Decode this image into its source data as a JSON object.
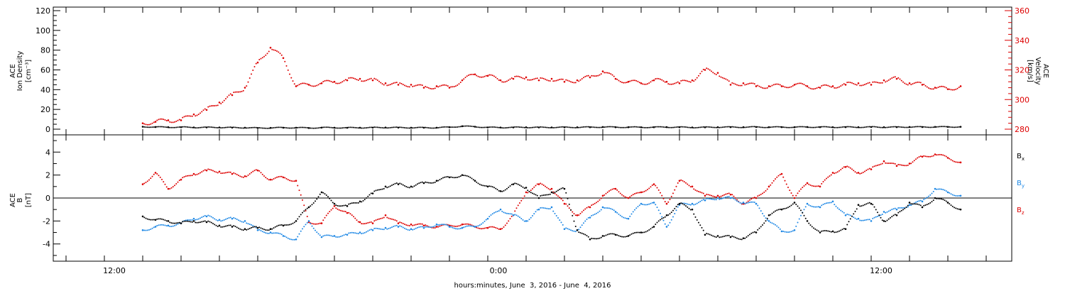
{
  "chart_data": [
    {
      "type": "scatter",
      "panel": "top",
      "ylabel_left": [
        "ACE",
        "Ion Density",
        "[cm⁻³]"
      ],
      "ylabel_right": [
        "ACE",
        "Velocity",
        "[km/s]"
      ],
      "ylim_left": [
        0,
        120
      ],
      "yticks_left": [
        "0",
        "20",
        "40",
        "60",
        "80",
        "100",
        "120"
      ],
      "ylim_right": [
        278,
        362
      ],
      "yticks_right": [
        "280",
        "300",
        "320",
        "340",
        "360"
      ],
      "colors": {
        "density": "#000000",
        "velocity": "#dd0000"
      },
      "series": [
        {
          "axis": "left",
          "x": [
            7,
            8,
            9,
            10,
            11,
            12,
            13,
            14,
            15,
            16,
            17,
            18,
            19,
            20,
            21,
            22,
            23,
            24,
            25,
            26,
            27,
            28,
            29,
            30,
            31,
            32,
            33,
            34,
            35,
            36,
            37,
            38,
            39,
            40,
            41,
            42,
            43,
            44,
            45,
            46,
            47,
            48,
            49,
            50,
            51,
            52,
            53,
            54,
            55,
            56,
            57,
            58,
            59,
            60,
            61,
            62,
            63,
            64,
            65,
            66,
            67,
            68,
            69,
            70,
            71
          ],
          "y": [
            2.5,
            2.2,
            2.0,
            2.0,
            1.8,
            1.8,
            1.8,
            1.6,
            1.5,
            1.2,
            1.3,
            1.5,
            1.5,
            1.2,
            1.6,
            1.5,
            1.4,
            1.5,
            1.6,
            1.7,
            1.6,
            1.5,
            1.5,
            1.5,
            2.0,
            3.0,
            2.5,
            1.8,
            1.7,
            1.8,
            1.9,
            1.8,
            1.8,
            1.9,
            1.9,
            2.0,
            2.2,
            2.0,
            2.0,
            1.9,
            2.0,
            2.1,
            2.0,
            1.8,
            1.9,
            2.0,
            2.1,
            2.0,
            2.2,
            2.0,
            2.1,
            2.0,
            2.2,
            2.1,
            2.0,
            2.1,
            2.0,
            2.2,
            2.0,
            2.1,
            2.2,
            2.2,
            2.3,
            2.3,
            2.4
          ]
        },
        {
          "axis": "right",
          "x": [
            7,
            8,
            9,
            10,
            11,
            12,
            13,
            14,
            15,
            16,
            17,
            18,
            19,
            20,
            21,
            22,
            23,
            24,
            25,
            26,
            27,
            28,
            29,
            30,
            31,
            32,
            33,
            34,
            35,
            36,
            37,
            38,
            39,
            40,
            41,
            42,
            43,
            44,
            45,
            46,
            47,
            48,
            49,
            50,
            51,
            52,
            53,
            54,
            55,
            56,
            57,
            58,
            59,
            60,
            61,
            62,
            63,
            64,
            65,
            66,
            67,
            68,
            69,
            70,
            71
          ],
          "y": [
            284,
            285,
            286,
            286,
            290,
            293,
            298,
            303,
            308,
            325,
            335,
            328,
            309,
            310,
            311,
            312,
            313,
            314,
            313,
            311,
            310,
            310,
            308,
            309,
            308,
            313,
            317,
            316,
            313,
            314,
            315,
            313,
            314,
            312,
            313,
            315,
            319,
            314,
            312,
            311,
            313,
            312,
            311,
            313,
            320,
            318,
            310,
            311,
            309,
            309,
            309,
            310,
            309,
            308,
            309,
            310,
            311,
            310,
            313,
            314,
            311,
            310,
            308,
            307,
            309
          ]
        }
      ]
    },
    {
      "type": "scatter",
      "panel": "bottom",
      "ylabel": [
        "ACE",
        "B",
        "[nT]"
      ],
      "ylim": [
        -5.5,
        5.5
      ],
      "yticks": [
        "-4",
        "-2",
        "0",
        "2",
        "4"
      ],
      "xlabel": "hours:minutes, June  3, 2016 - June  4, 2016",
      "xticks": [
        "12:00",
        "0:00",
        "12:00"
      ],
      "legend": [
        "B",
        "B",
        "B"
      ],
      "legend_subscripts": [
        "x",
        "y",
        "z"
      ],
      "legend_placement": "right",
      "zero_line": true,
      "colors": {
        "Bx": "#000000",
        "By": "#1e88e5",
        "Bz": "#dd0000"
      },
      "series": [
        {
          "x": [
            7,
            8,
            9,
            10,
            11,
            12,
            13,
            14,
            15,
            16,
            17,
            18,
            19,
            20,
            21,
            22,
            23,
            24,
            25,
            26,
            27,
            28,
            29,
            30,
            31,
            32,
            33,
            34,
            35,
            36,
            37,
            38,
            39,
            40,
            41,
            42,
            43,
            44,
            45,
            46,
            47,
            48,
            49,
            50,
            51,
            52,
            53,
            54,
            55,
            56,
            57,
            58,
            59,
            60,
            61,
            62,
            63,
            64,
            65,
            66,
            67,
            68,
            69,
            70,
            71
          ],
          "y": [
            -1.6,
            -1.9,
            -2.0,
            -2.2,
            -2.0,
            -2.1,
            -2.4,
            -2.5,
            -2.7,
            -2.6,
            -2.7,
            -2.4,
            -2.0,
            -0.8,
            0.5,
            -0.5,
            -0.7,
            -0.3,
            0.4,
            1.0,
            1.2,
            1.0,
            1.3,
            1.5,
            1.8,
            2.0,
            1.5,
            1.0,
            0.6,
            1.2,
            0.9,
            0.0,
            0.5,
            0.8,
            -2.8,
            -3.6,
            -3.3,
            -3.2,
            -3.3,
            -3.0,
            -2.5,
            -1.5,
            -0.5,
            -1.0,
            -3.2,
            -3.3,
            -3.4,
            -3.5,
            -3.0,
            -1.5,
            -1.0,
            -0.4,
            -2.0,
            -3.0,
            -2.9,
            -2.7,
            -0.6,
            -0.5,
            -2.0,
            -1.5,
            -0.4,
            -0.8,
            0.0,
            -0.4,
            -1.0
          ]
        },
        {
          "x": [
            7,
            8,
            9,
            10,
            11,
            12,
            13,
            14,
            15,
            16,
            17,
            18,
            19,
            20,
            21,
            22,
            23,
            24,
            25,
            26,
            27,
            28,
            29,
            30,
            31,
            32,
            33,
            34,
            35,
            36,
            37,
            38,
            39,
            40,
            41,
            42,
            43,
            44,
            45,
            46,
            47,
            48,
            49,
            50,
            51,
            52,
            53,
            54,
            55,
            56,
            57,
            58,
            59,
            60,
            61,
            62,
            63,
            64,
            65,
            66,
            67,
            68,
            69,
            70,
            71
          ],
          "y": [
            -2.8,
            -2.5,
            -2.4,
            -2.2,
            -1.8,
            -1.6,
            -1.9,
            -1.8,
            -2.0,
            -2.8,
            -3.0,
            -3.3,
            -3.6,
            -2.0,
            -3.4,
            -3.3,
            -3.2,
            -3.0,
            -2.8,
            -2.6,
            -2.5,
            -2.7,
            -2.6,
            -2.3,
            -2.5,
            -2.6,
            -2.5,
            -1.8,
            -1.0,
            -1.5,
            -2.0,
            -1.0,
            -0.8,
            -2.7,
            -2.8,
            -1.7,
            -0.8,
            -1.2,
            -1.8,
            -0.5,
            -0.4,
            -2.5,
            -0.6,
            -0.5,
            -0.2,
            0.0,
            0.0,
            -0.4,
            -0.5,
            -2.0,
            -2.9,
            -2.8,
            -0.5,
            -0.8,
            -0.3,
            -1.5,
            -1.8,
            -2.0,
            -1.2,
            -1.0,
            -0.6,
            -0.3,
            0.8,
            0.5,
            0.2
          ]
        },
        {
          "x": [
            7,
            8,
            9,
            10,
            11,
            12,
            13,
            14,
            15,
            16,
            17,
            18,
            19,
            20,
            21,
            22,
            23,
            24,
            25,
            26,
            27,
            28,
            29,
            30,
            31,
            32,
            33,
            34,
            35,
            36,
            37,
            38,
            39,
            40,
            41,
            42,
            43,
            44,
            45,
            46,
            47,
            48,
            49,
            50,
            51,
            52,
            53,
            54,
            55,
            56,
            57,
            58,
            59,
            60,
            61,
            62,
            63,
            64,
            65,
            66,
            67,
            68,
            69,
            70,
            71
          ],
          "y": [
            1.2,
            2.2,
            0.8,
            1.6,
            2.1,
            2.4,
            2.3,
            2.1,
            1.9,
            2.4,
            1.6,
            1.8,
            1.5,
            -2.1,
            -2.2,
            -0.7,
            -1.3,
            -2.1,
            -2.2,
            -1.5,
            -2.2,
            -2.3,
            -2.4,
            -2.5,
            -2.4,
            -2.3,
            -2.5,
            -2.6,
            -2.7,
            -1.5,
            0.5,
            1.2,
            0.8,
            -0.5,
            -1.5,
            -0.8,
            0.2,
            0.8,
            0.0,
            0.5,
            1.2,
            -0.5,
            1.5,
            1.0,
            0.2,
            0.2,
            0.3,
            -0.5,
            0.0,
            1.0,
            2.1,
            0.0,
            1.3,
            1.0,
            2.2,
            2.7,
            2.2,
            2.5,
            3.2,
            2.8,
            3.0,
            3.6,
            3.8,
            3.5,
            3.1
          ]
        }
      ]
    }
  ]
}
